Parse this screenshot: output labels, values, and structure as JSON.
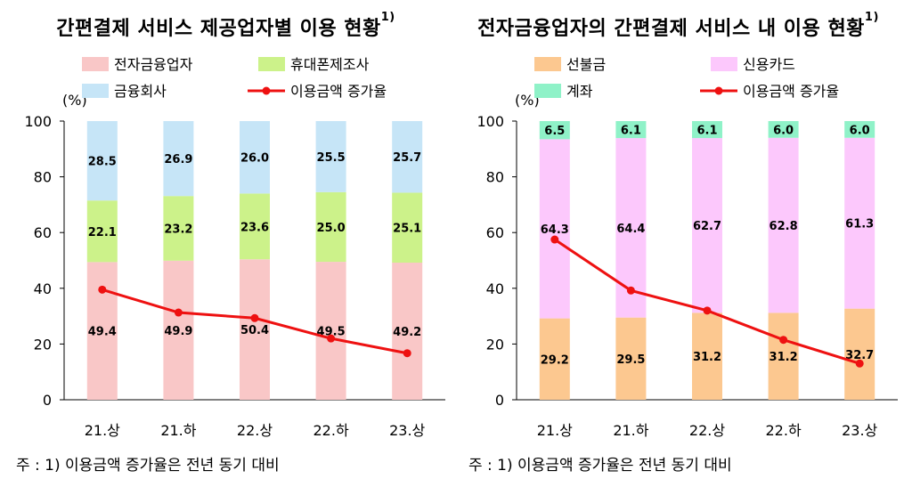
{
  "charts": [
    {
      "title": "간편결제 서비스 제공업자별 이용 현황",
      "title_sup": "1)",
      "y_unit": "(%)",
      "note": "주 : 1) 이용금액 증가율은 전년 동기 대비",
      "legend_layout": [
        [
          "전자금융업자",
          "휴대폰제조사"
        ],
        [
          "금융회사",
          "이용금액 증가율"
        ]
      ]
    },
    {
      "title": "전자금융업자의 간편결제 서비스 내 이용 현황",
      "title_sup": "1)",
      "y_unit": "(%)",
      "note": "주 : 1) 이용금액 증가율은 전년 동기 대비",
      "legend_layout": [
        [
          "선불금",
          "신용카드"
        ],
        [
          "계좌",
          "이용금액 증가율"
        ]
      ]
    }
  ],
  "chart_data": [
    {
      "type": "bar",
      "stacked": true,
      "title": "간편결제 서비스 제공업자별 이용 현황",
      "categories": [
        "21.상",
        "21.하",
        "22.상",
        "22.하",
        "23.상"
      ],
      "ylim": [
        0,
        100
      ],
      "yticks": [
        0,
        20,
        40,
        60,
        80,
        100
      ],
      "ylabel": "(%)",
      "series": [
        {
          "name": "전자금융업자",
          "values": [
            49.4,
            49.9,
            50.4,
            49.5,
            49.2
          ],
          "color": "#f9c7c7"
        },
        {
          "name": "휴대폰제조사",
          "values": [
            22.1,
            23.2,
            23.6,
            25.0,
            25.1
          ],
          "color": "#ccf28a"
        },
        {
          "name": "금융회사",
          "values": [
            28.5,
            26.9,
            26.0,
            25.5,
            25.7
          ],
          "color": "#c6e5f7"
        }
      ],
      "line": {
        "name": "이용금액 증가율",
        "values": [
          39.5,
          31.3,
          29.3,
          22.0,
          16.7
        ],
        "color": "#ee1111"
      },
      "grid": false,
      "legend_position": "top"
    },
    {
      "type": "bar",
      "stacked": true,
      "title": "전자금융업자의 간편결제 서비스 내 이용 현황",
      "categories": [
        "21.상",
        "21.하",
        "22.상",
        "22.하",
        "23.상"
      ],
      "ylim": [
        0,
        100
      ],
      "yticks": [
        0,
        20,
        40,
        60,
        80,
        100
      ],
      "ylabel": "(%)",
      "series": [
        {
          "name": "선불금",
          "values": [
            29.2,
            29.5,
            31.2,
            31.2,
            32.7
          ],
          "color": "#fcc890"
        },
        {
          "name": "신용카드",
          "values": [
            64.3,
            64.4,
            62.7,
            62.8,
            61.3
          ],
          "color": "#fcc8fc"
        },
        {
          "name": "계좌",
          "values": [
            6.5,
            6.1,
            6.1,
            6.0,
            6.0
          ],
          "color": "#8ff2c8"
        }
      ],
      "line": {
        "name": "이용금액 증가율",
        "values": [
          57.5,
          39.2,
          32.0,
          21.5,
          13.0
        ],
        "color": "#ee1111"
      },
      "grid": false,
      "legend_position": "top"
    }
  ]
}
